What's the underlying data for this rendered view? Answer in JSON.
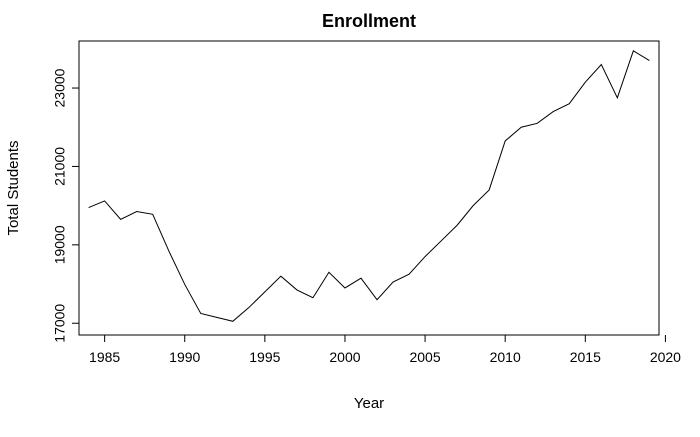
{
  "chart_data": {
    "type": "line",
    "title": "Enrollment",
    "xlabel": "Year",
    "ylabel": "Total Students",
    "x": [
      1984,
      1985,
      1986,
      1987,
      1988,
      1989,
      1990,
      1991,
      1992,
      1993,
      1994,
      1995,
      1996,
      1997,
      1998,
      1999,
      2000,
      2001,
      2002,
      2003,
      2004,
      2005,
      2006,
      2007,
      2008,
      2009,
      2010,
      2011,
      2012,
      2013,
      2014,
      2015,
      2016,
      2017,
      2018,
      2019
    ],
    "series": [
      {
        "values": [
          19950,
          20120,
          19650,
          19850,
          19780,
          18850,
          17990,
          17250,
          17150,
          17050,
          17400,
          17800,
          18200,
          17850,
          17650,
          18300,
          17900,
          18150,
          17600,
          18050,
          18250,
          18700,
          19100,
          19500,
          20000,
          20400,
          21650,
          22000,
          22100,
          22400,
          22600,
          23150,
          23600,
          22750,
          23950,
          23700
        ]
      }
    ],
    "xlim": [
      1983.4,
      2019.6
    ],
    "ylim": [
      16700,
      24200
    ],
    "x_ticks": [
      1985,
      1990,
      1995,
      2000,
      2005,
      2010,
      2015,
      2020
    ],
    "y_ticks": [
      17000,
      19000,
      21000,
      23000
    ],
    "x_tick_labels": [
      "1985",
      "1990",
      "1995",
      "2000",
      "2005",
      "2010",
      "2015",
      "2020"
    ],
    "y_tick_labels": [
      "17000",
      "19000",
      "21000",
      "23000"
    ],
    "grid": false,
    "line_color": "#000000"
  }
}
